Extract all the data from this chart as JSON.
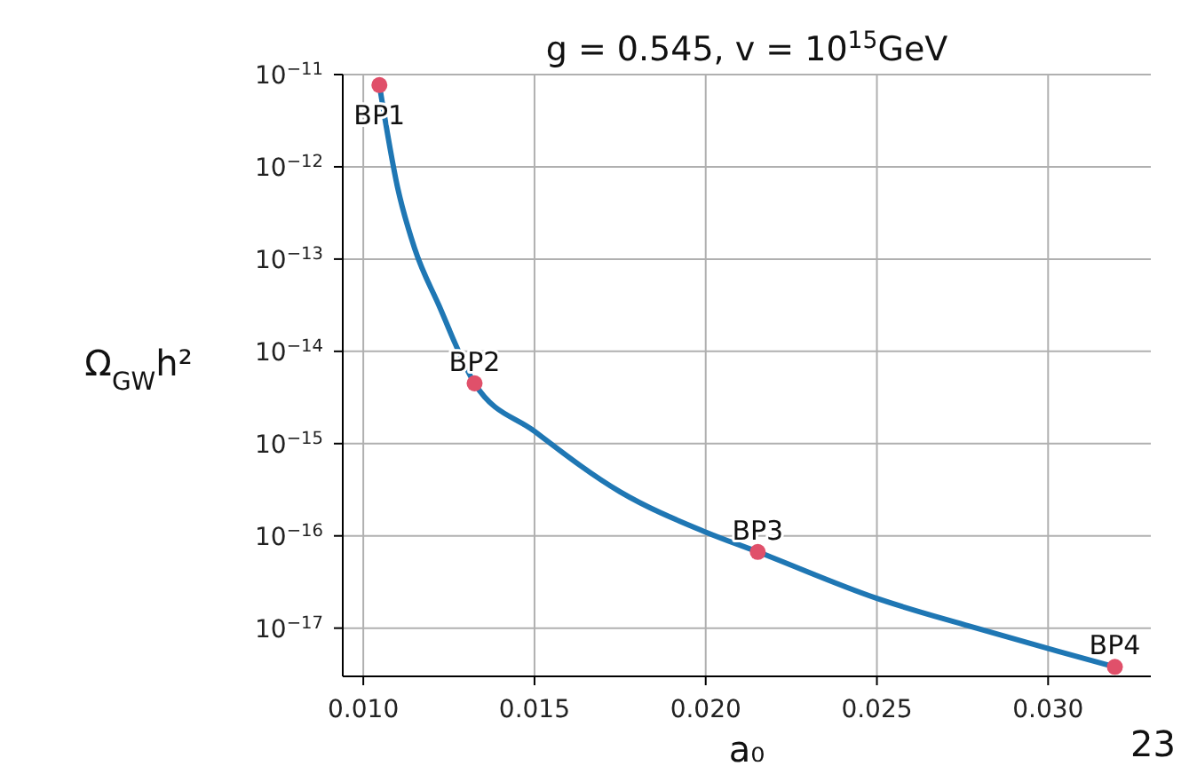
{
  "chart_data": {
    "type": "line",
    "title": "g = 0.545, v = 10$^{15}$GeV",
    "xlabel": "a₀",
    "ylabel": "Ω$_{GW}$h²",
    "log": "y",
    "grid": true,
    "legend": false,
    "xlim": [
      0.0094,
      0.033
    ],
    "xticks": [
      {
        "value": 0.01,
        "label": "0.010"
      },
      {
        "value": 0.015,
        "label": "0.015"
      },
      {
        "value": 0.02,
        "label": "0.020"
      },
      {
        "value": 0.025,
        "label": "0.025"
      },
      {
        "value": 0.03,
        "label": "0.030"
      }
    ],
    "ylim": [
      3e-18,
      1e-11
    ],
    "yticks": [
      {
        "value": 1e-17,
        "label": "10$^{−17}$"
      },
      {
        "value": 1e-16,
        "label": "10$^{−16}$"
      },
      {
        "value": 1e-15,
        "label": "10$^{−15}$"
      },
      {
        "value": 1e-14,
        "label": "10$^{−14}$"
      },
      {
        "value": 1e-13,
        "label": "10$^{−13}$"
      },
      {
        "value": 1e-12,
        "label": "10$^{−12}$"
      },
      {
        "value": 1e-11,
        "label": "10$^{−11}$"
      }
    ],
    "series": [
      {
        "color": "#1f77b4",
        "marker": "none",
        "line_style": "solid",
        "x": [
          0.01047,
          0.011,
          0.0115,
          0.0122,
          0.01325,
          0.015,
          0.0175,
          0.02,
          0.02152,
          0.025,
          0.0277,
          0.0303,
          0.03195
        ],
        "values": [
          7.7e-12,
          6e-13,
          1.3e-13,
          3.2e-14,
          4.5e-15,
          1.36e-15,
          3e-16,
          1.1e-16,
          6.7e-17,
          2.1e-17,
          1.05e-17,
          5.6e-18,
          3.8e-18
        ]
      },
      {
        "type": "scatter",
        "color": "#e0506a",
        "marker": "circle",
        "x": [
          0.01047,
          0.01325,
          0.02152,
          0.03195
        ],
        "values": [
          7.7e-12,
          4.5e-15,
          6.7e-17,
          3.8e-18
        ]
      }
    ],
    "annotations": [
      {
        "text": "BP1",
        "x": 0.01047,
        "y": 7.7e-12
      },
      {
        "text": "BP2",
        "x": 0.01325,
        "y": 4.5e-15
      },
      {
        "text": "BP3",
        "x": 0.02152,
        "y": 6.7e-17
      },
      {
        "text": "BP4",
        "x": 0.03195,
        "y": 3.8e-18
      },
      "23"
    ]
  }
}
